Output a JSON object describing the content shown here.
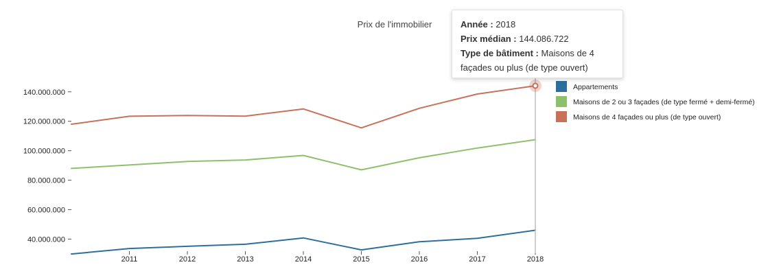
{
  "chart_data": {
    "type": "line",
    "title": "Prix de l'immobilier",
    "x": [
      "2010",
      "2011",
      "2012",
      "2013",
      "2014",
      "2015",
      "2016",
      "2017",
      "2018"
    ],
    "xticks": [
      "2011",
      "2012",
      "2013",
      "2014",
      "2015",
      "2016",
      "2017",
      "2018"
    ],
    "yticks": [
      "40.000.000",
      "60.000.000",
      "80.000.000",
      "100.000.000",
      "120.000.000",
      "140.000.000"
    ],
    "ylim": [
      29000000,
      152000000
    ],
    "grid": false,
    "legend_position": "right",
    "series": [
      {
        "name": "Appartements",
        "color": "#2b6f9e",
        "values": [
          29900000,
          33600000,
          35100000,
          36500000,
          40800000,
          32700000,
          38200000,
          40500000,
          46000000
        ]
      },
      {
        "name": "Maisons de 2 ou 3 façades (de type fermé + demi-fermé)",
        "color": "#8ec06c",
        "values": [
          88000000,
          90300000,
          92700000,
          93700000,
          96800000,
          87000000,
          95200000,
          101800000,
          107500000
        ]
      },
      {
        "name": "Maisons de 4 façades ou plus (de type ouvert)",
        "color": "#c8705a",
        "values": [
          118000000,
          123400000,
          123900000,
          123500000,
          128400000,
          115500000,
          128800000,
          138500000,
          144086722
        ]
      }
    ],
    "hover": {
      "x": "2018",
      "series": "Maisons de 4 façades ou plus (de type ouvert)"
    }
  },
  "tooltip": {
    "year_label": "Année :",
    "year_value": "2018",
    "price_label": "Prix médian :",
    "price_value": "144.086.722",
    "type_label": "Type de bâtiment :",
    "type_value": "Maisons de 4 façades ou plus (de type ouvert)"
  }
}
